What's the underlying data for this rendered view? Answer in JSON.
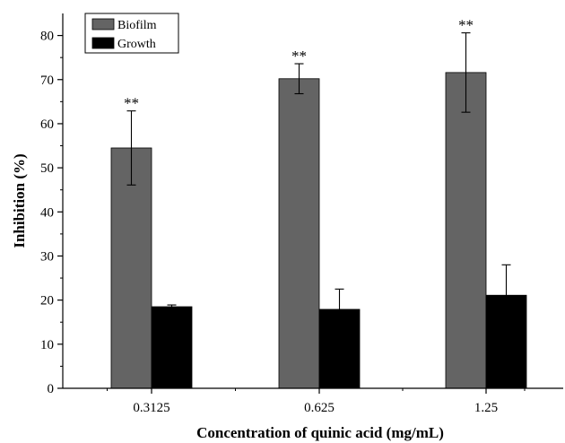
{
  "chart_data": {
    "type": "bar",
    "categories": [
      "0.3125",
      "0.625",
      "1.25"
    ],
    "series": [
      {
        "name": "Biofilm",
        "color": "#646464",
        "values": [
          54.5,
          70.2,
          71.6
        ],
        "errors": [
          8.4,
          3.4,
          9.0
        ],
        "annotations": [
          "**",
          "**",
          "**"
        ]
      },
      {
        "name": "Growth",
        "color": "#000000",
        "values": [
          18.5,
          17.9,
          21.1
        ],
        "errors": [
          0.4,
          4.6,
          6.9
        ],
        "annotations": [
          "",
          "",
          ""
        ]
      }
    ],
    "xlabel": "Concentration of quinic acid (mg/mL)",
    "ylabel": "Inhibition (%)",
    "ylim": [
      0,
      85
    ],
    "yticks": [
      0,
      10,
      20,
      30,
      40,
      50,
      60,
      70,
      80
    ],
    "legend_position": "top-left",
    "grid": false
  }
}
